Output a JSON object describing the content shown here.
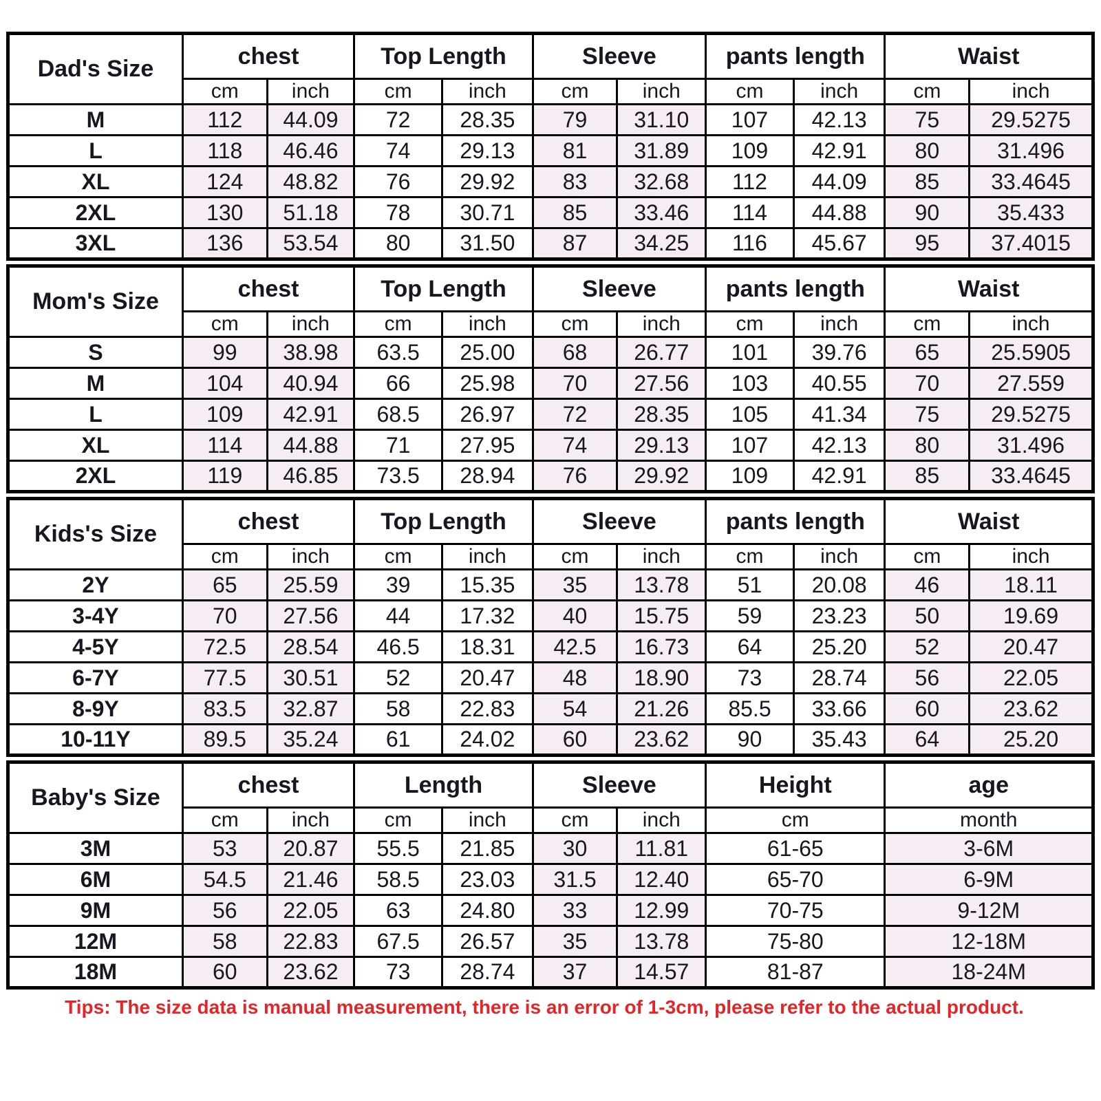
{
  "colors": {
    "shaded_cell": "#f6edf4",
    "tips_red": "#e42528",
    "border": "#000000",
    "text": "#18161f",
    "background": "#ffffff"
  },
  "tips": "Tips: The size data is manual measurement, there is an error of 1-3cm, please refer to the actual product.",
  "chart_data": [
    {
      "type": "table",
      "title": "Dad's Size",
      "column_groups": [
        {
          "label": "chest",
          "units": [
            "cm",
            "inch"
          ],
          "shaded": true
        },
        {
          "label": "Top Length",
          "units": [
            "cm",
            "inch"
          ],
          "shaded": false
        },
        {
          "label": "Sleeve",
          "units": [
            "cm",
            "inch"
          ],
          "shaded": true
        },
        {
          "label": "pants length",
          "units": [
            "cm",
            "inch"
          ],
          "shaded": false
        },
        {
          "label": "Waist",
          "units": [
            "cm",
            "inch"
          ],
          "shaded": true
        }
      ],
      "rows": [
        {
          "label": "M",
          "values": [
            "112",
            "44.09",
            "72",
            "28.35",
            "79",
            "31.10",
            "107",
            "42.13",
            "75",
            "29.5275"
          ]
        },
        {
          "label": "L",
          "values": [
            "118",
            "46.46",
            "74",
            "29.13",
            "81",
            "31.89",
            "109",
            "42.91",
            "80",
            "31.496"
          ]
        },
        {
          "label": "XL",
          "values": [
            "124",
            "48.82",
            "76",
            "29.92",
            "83",
            "32.68",
            "112",
            "44.09",
            "85",
            "33.4645"
          ]
        },
        {
          "label": "2XL",
          "values": [
            "130",
            "51.18",
            "78",
            "30.71",
            "85",
            "33.46",
            "114",
            "44.88",
            "90",
            "35.433"
          ]
        },
        {
          "label": "3XL",
          "values": [
            "136",
            "53.54",
            "80",
            "31.50",
            "87",
            "34.25",
            "116",
            "45.67",
            "95",
            "37.4015"
          ]
        }
      ]
    },
    {
      "type": "table",
      "title": "Mom's Size",
      "column_groups": [
        {
          "label": "chest",
          "units": [
            "cm",
            "inch"
          ],
          "shaded": true
        },
        {
          "label": "Top Length",
          "units": [
            "cm",
            "inch"
          ],
          "shaded": false
        },
        {
          "label": "Sleeve",
          "units": [
            "cm",
            "inch"
          ],
          "shaded": true
        },
        {
          "label": "pants length",
          "units": [
            "cm",
            "inch"
          ],
          "shaded": false
        },
        {
          "label": "Waist",
          "units": [
            "cm",
            "inch"
          ],
          "shaded": true
        }
      ],
      "rows": [
        {
          "label": "S",
          "values": [
            "99",
            "38.98",
            "63.5",
            "25.00",
            "68",
            "26.77",
            "101",
            "39.76",
            "65",
            "25.5905"
          ]
        },
        {
          "label": "M",
          "values": [
            "104",
            "40.94",
            "66",
            "25.98",
            "70",
            "27.56",
            "103",
            "40.55",
            "70",
            "27.559"
          ]
        },
        {
          "label": "L",
          "values": [
            "109",
            "42.91",
            "68.5",
            "26.97",
            "72",
            "28.35",
            "105",
            "41.34",
            "75",
            "29.5275"
          ]
        },
        {
          "label": "XL",
          "values": [
            "114",
            "44.88",
            "71",
            "27.95",
            "74",
            "29.13",
            "107",
            "42.13",
            "80",
            "31.496"
          ]
        },
        {
          "label": "2XL",
          "values": [
            "119",
            "46.85",
            "73.5",
            "28.94",
            "76",
            "29.92",
            "109",
            "42.91",
            "85",
            "33.4645"
          ]
        }
      ]
    },
    {
      "type": "table",
      "title": "Kids's Size",
      "column_groups": [
        {
          "label": "chest",
          "units": [
            "cm",
            "inch"
          ],
          "shaded": true
        },
        {
          "label": "Top Length",
          "units": [
            "cm",
            "inch"
          ],
          "shaded": false
        },
        {
          "label": "Sleeve",
          "units": [
            "cm",
            "inch"
          ],
          "shaded": true
        },
        {
          "label": "pants length",
          "units": [
            "cm",
            "inch"
          ],
          "shaded": false
        },
        {
          "label": "Waist",
          "units": [
            "cm",
            "inch"
          ],
          "shaded": true
        }
      ],
      "rows": [
        {
          "label": "2Y",
          "values": [
            "65",
            "25.59",
            "39",
            "15.35",
            "35",
            "13.78",
            "51",
            "20.08",
            "46",
            "18.11"
          ]
        },
        {
          "label": "3-4Y",
          "values": [
            "70",
            "27.56",
            "44",
            "17.32",
            "40",
            "15.75",
            "59",
            "23.23",
            "50",
            "19.69"
          ]
        },
        {
          "label": "4-5Y",
          "values": [
            "72.5",
            "28.54",
            "46.5",
            "18.31",
            "42.5",
            "16.73",
            "64",
            "25.20",
            "52",
            "20.47"
          ]
        },
        {
          "label": "6-7Y",
          "values": [
            "77.5",
            "30.51",
            "52",
            "20.47",
            "48",
            "18.90",
            "73",
            "28.74",
            "56",
            "22.05"
          ]
        },
        {
          "label": "8-9Y",
          "values": [
            "83.5",
            "32.87",
            "58",
            "22.83",
            "54",
            "21.26",
            "85.5",
            "33.66",
            "60",
            "23.62"
          ]
        },
        {
          "label": "10-11Y",
          "values": [
            "89.5",
            "35.24",
            "61",
            "24.02",
            "60",
            "23.62",
            "90",
            "35.43",
            "64",
            "25.20"
          ]
        }
      ]
    },
    {
      "type": "table",
      "title": "Baby's Size",
      "column_groups": [
        {
          "label": "chest",
          "units": [
            "cm",
            "inch"
          ],
          "shaded": true
        },
        {
          "label": "Length",
          "units": [
            "cm",
            "inch"
          ],
          "shaded": false
        },
        {
          "label": "Sleeve",
          "units": [
            "cm",
            "inch"
          ],
          "shaded": true
        },
        {
          "label": "Height",
          "units": [
            "cm"
          ],
          "shaded": false
        },
        {
          "label": "age",
          "units": [
            "month"
          ],
          "shaded": true
        }
      ],
      "rows": [
        {
          "label": "3M",
          "values": [
            "53",
            "20.87",
            "55.5",
            "21.85",
            "30",
            "11.81",
            "61-65",
            "3-6M"
          ]
        },
        {
          "label": "6M",
          "values": [
            "54.5",
            "21.46",
            "58.5",
            "23.03",
            "31.5",
            "12.40",
            "65-70",
            "6-9M"
          ]
        },
        {
          "label": "9M",
          "values": [
            "56",
            "22.05",
            "63",
            "24.80",
            "33",
            "12.99",
            "70-75",
            "9-12M"
          ]
        },
        {
          "label": "12M",
          "values": [
            "58",
            "22.83",
            "67.5",
            "26.57",
            "35",
            "13.78",
            "75-80",
            "12-18M"
          ]
        },
        {
          "label": "18M",
          "values": [
            "60",
            "23.62",
            "73",
            "28.74",
            "37",
            "14.57",
            "81-87",
            "18-24M"
          ]
        }
      ]
    }
  ]
}
